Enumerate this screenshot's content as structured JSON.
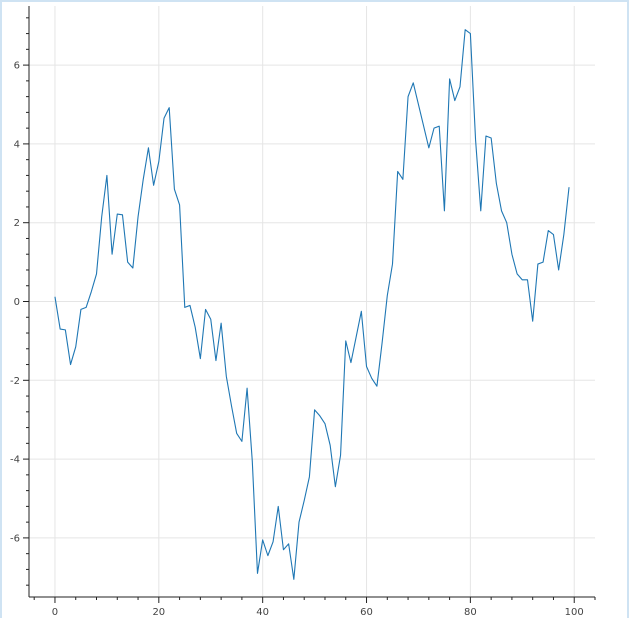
{
  "chart_data": {
    "type": "line",
    "title": "",
    "xlabel": "",
    "ylabel": "",
    "xlim": [
      -5,
      104
    ],
    "ylim": [
      -7.5,
      7.5
    ],
    "grid": true,
    "line_color": "#1f77b4",
    "grid_color": "#e5e5e5",
    "x_ticks": [
      0,
      20,
      40,
      60,
      80,
      100
    ],
    "y_ticks": [
      -6,
      -4,
      -2,
      0,
      2,
      4,
      6
    ],
    "x_tick_labels": [
      "0",
      "20",
      "40",
      "60",
      "80",
      "100"
    ],
    "y_tick_labels": [
      "-6",
      "-4",
      "-2",
      "0",
      "2",
      "4",
      "6"
    ],
    "series": [
      {
        "x": [
          0,
          1,
          2,
          3,
          4,
          5,
          6,
          7,
          8,
          9,
          10,
          11,
          12,
          13,
          14,
          15,
          16,
          17,
          18,
          19,
          20,
          21,
          22,
          23,
          24,
          25,
          26,
          27,
          28,
          29,
          30,
          31,
          32,
          33,
          34,
          35,
          36,
          37,
          38,
          39,
          40,
          41,
          42,
          43,
          44,
          45,
          46,
          47,
          48,
          49,
          50,
          51,
          52,
          53,
          54,
          55,
          56,
          57,
          58,
          59,
          60,
          61,
          62,
          63,
          64,
          65,
          66,
          67,
          68,
          69,
          70,
          71,
          72,
          73,
          74,
          75,
          76,
          77,
          78,
          79,
          80,
          81,
          82,
          83,
          84,
          85,
          86,
          87,
          88,
          89,
          90,
          91,
          92,
          93,
          94,
          95,
          96,
          97,
          98,
          99
        ],
        "values": [
          0.12,
          -0.7,
          -0.72,
          -1.6,
          -1.15,
          -0.2,
          -0.15,
          0.25,
          0.7,
          2.15,
          3.2,
          1.2,
          2.22,
          2.2,
          1.0,
          0.85,
          2.15,
          3.1,
          3.9,
          2.95,
          3.55,
          4.65,
          4.92,
          2.85,
          2.45,
          -0.15,
          -0.1,
          -0.65,
          -1.45,
          -0.2,
          -0.45,
          -1.5,
          -0.55,
          -1.9,
          -2.65,
          -3.35,
          -3.55,
          -2.2,
          -4.05,
          -6.9,
          -6.05,
          -6.45,
          -6.1,
          -5.2,
          -6.3,
          -6.15,
          -7.05,
          -5.6,
          -5.05,
          -4.45,
          -2.75,
          -2.9,
          -3.1,
          -3.65,
          -4.7,
          -3.9,
          -1.0,
          -1.55,
          -0.9,
          -0.25,
          -1.65,
          -1.95,
          -2.15,
          -1.05,
          0.15,
          0.95,
          3.3,
          3.1,
          5.2,
          5.55,
          5.0,
          4.45,
          3.9,
          4.4,
          4.45,
          2.3,
          5.65,
          5.1,
          5.45,
          6.9,
          6.8,
          4.1,
          2.3,
          4.2,
          4.15,
          3.0,
          2.3,
          2.0,
          1.2,
          0.7,
          0.55,
          0.55,
          -0.5,
          0.95,
          1.0,
          1.8,
          1.7,
          0.8,
          1.7,
          2.9
        ]
      }
    ]
  }
}
